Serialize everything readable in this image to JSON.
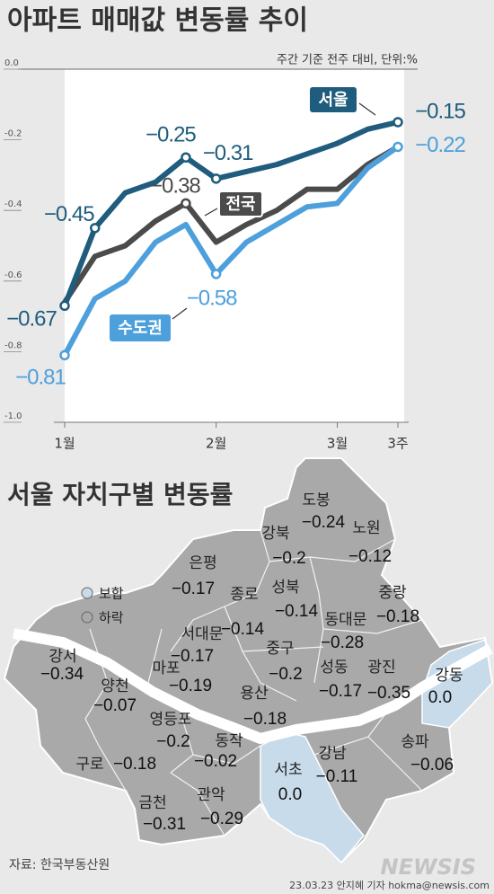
{
  "chart_data": {
    "type": "line",
    "title": "아파트 매매값 변동률 추이",
    "subtitle": "주간 기준 전주 대비, 단위:%",
    "categories": [
      "1월",
      null,
      null,
      null,
      null,
      "2월",
      null,
      null,
      null,
      "3월",
      null,
      "3주"
    ],
    "ylim": [
      -1.0,
      0.0
    ],
    "yticks": [
      {
        "value": 0,
        "label": "0.0"
      },
      -0.2,
      -0.4,
      -0.6,
      -0.8,
      {
        "value": -1,
        "label": "-1.0"
      }
    ],
    "series": [
      {
        "name": "서울",
        "color": "#1f5c7d",
        "values": [
          -0.67,
          -0.45,
          -0.35,
          -0.32,
          -0.25,
          -0.31,
          -0.29,
          -0.27,
          -0.24,
          -0.21,
          -0.17,
          -0.15
        ],
        "value_labels": [
          "−0.67",
          "−0.45",
          null,
          null,
          "−0.25",
          "−0.31",
          null,
          null,
          null,
          null,
          null,
          "−0.15"
        ]
      },
      {
        "name": "전국",
        "color": "#4b4b4b",
        "values": [
          -0.66,
          -0.53,
          -0.5,
          -0.43,
          -0.38,
          -0.49,
          -0.44,
          -0.4,
          -0.34,
          -0.34,
          -0.27,
          -0.22
        ],
        "value_labels": [
          null,
          null,
          null,
          null,
          "−0.38",
          null,
          null,
          null,
          null,
          null,
          null,
          null
        ]
      },
      {
        "name": "수도권",
        "color": "#4da0db",
        "values": [
          -0.81,
          -0.65,
          -0.6,
          -0.49,
          -0.44,
          -0.58,
          -0.49,
          -0.44,
          -0.39,
          -0.38,
          -0.28,
          -0.22
        ],
        "value_labels": [
          "−0.81",
          null,
          null,
          null,
          null,
          "−0.58",
          null,
          null,
          null,
          null,
          null,
          "−0.22"
        ]
      }
    ]
  },
  "map": {
    "title": "서울 자치구별 변동률",
    "legend": [
      {
        "label": "보합",
        "color": "#c7dbea"
      },
      {
        "label": "하락",
        "color": "#a9a9a9"
      }
    ],
    "districts": [
      {
        "name": "도봉",
        "value": "−0.24",
        "color": "#a9a9a9"
      },
      {
        "name": "강북",
        "value": "−0.2",
        "color": "#a9a9a9"
      },
      {
        "name": "노원",
        "value": "−0.12",
        "color": "#a9a9a9"
      },
      {
        "name": "은평",
        "value": "−0.17",
        "color": "#a9a9a9"
      },
      {
        "name": "종로",
        "value": "−0.14",
        "color": "#a9a9a9"
      },
      {
        "name": "성북",
        "value": "−0.14",
        "color": "#a9a9a9"
      },
      {
        "name": "서대문",
        "value": "−0.17",
        "color": "#a9a9a9"
      },
      {
        "name": "마포",
        "value": "−0.19",
        "color": "#a9a9a9"
      },
      {
        "name": "중구",
        "value": "−0.2",
        "color": "#a9a9a9"
      },
      {
        "name": "동대문",
        "value": "−0.28",
        "color": "#a9a9a9"
      },
      {
        "name": "중랑",
        "value": "−0.18",
        "color": "#a9a9a9"
      },
      {
        "name": "성동",
        "value": "−0.17",
        "color": "#a9a9a9"
      },
      {
        "name": "광진",
        "value": "−0.35",
        "color": "#a9a9a9"
      },
      {
        "name": "용산",
        "value": "−0.18",
        "color": "#a9a9a9"
      },
      {
        "name": "강서",
        "value": "−0.34",
        "color": "#a9a9a9"
      },
      {
        "name": "양천",
        "value": "−0.07",
        "color": "#a9a9a9"
      },
      {
        "name": "영등포",
        "value": "−0.2",
        "color": "#a9a9a9"
      },
      {
        "name": "구로",
        "value": "−0.18",
        "color": "#a9a9a9"
      },
      {
        "name": "동작",
        "value": "−0.02",
        "color": "#a9a9a9"
      },
      {
        "name": "금천",
        "value": "−0.31",
        "color": "#a9a9a9"
      },
      {
        "name": "관악",
        "value": "−0.29",
        "color": "#a9a9a9"
      },
      {
        "name": "서초",
        "value": "0.0",
        "color": "#c7dbea"
      },
      {
        "name": "강남",
        "value": "−0.11",
        "color": "#a9a9a9"
      },
      {
        "name": "송파",
        "value": "−0.06",
        "color": "#a9a9a9"
      },
      {
        "name": "강동",
        "value": "0.0",
        "color": "#c7dbea"
      }
    ]
  },
  "source": "자료: 한국부동산원",
  "credit": "23.03.23 안지혜 기자 hokma@newsis.com",
  "logo": "NEWSIS"
}
